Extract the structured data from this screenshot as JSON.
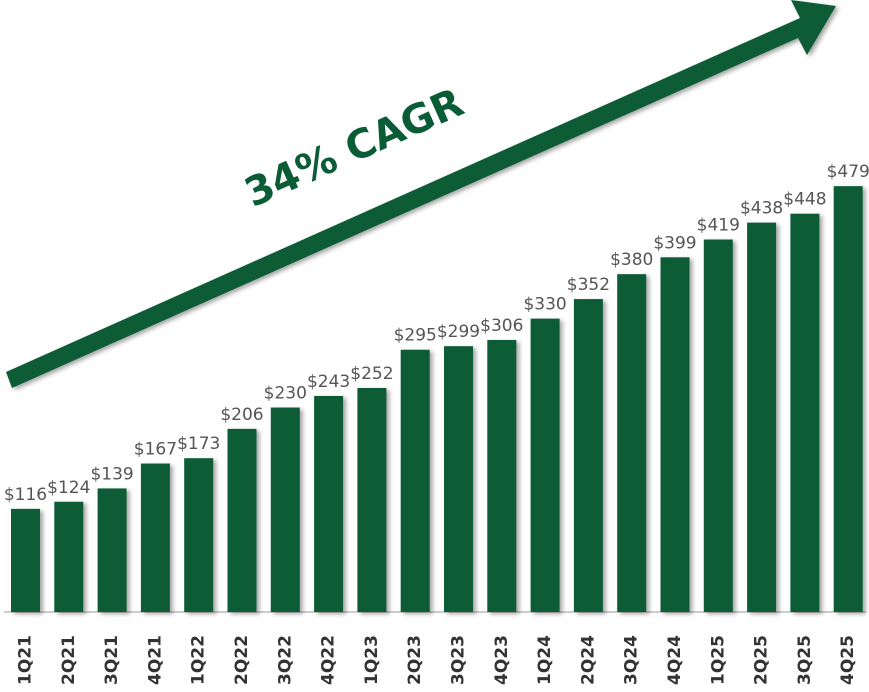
{
  "chart_data": {
    "type": "bar",
    "annotation": "34% CAGR",
    "categories": [
      "1Q21",
      "2Q21",
      "3Q21",
      "4Q21",
      "1Q22",
      "2Q22",
      "3Q22",
      "4Q22",
      "1Q23",
      "2Q23",
      "3Q23",
      "4Q23",
      "1Q24",
      "2Q24",
      "3Q24",
      "4Q24",
      "1Q25",
      "2Q25",
      "3Q25",
      "4Q25"
    ],
    "values": [
      116,
      124,
      139,
      167,
      173,
      206,
      230,
      243,
      252,
      295,
      299,
      306,
      330,
      352,
      380,
      399,
      419,
      438,
      448,
      479
    ],
    "value_labels": [
      "$116",
      "$124",
      "$139",
      "$167",
      "$173",
      "$206",
      "$230",
      "$243",
      "$252",
      "$295",
      "$299",
      "$306",
      "$330",
      "$352",
      "$380",
      "$399",
      "$419",
      "$438",
      "$448",
      "$479"
    ],
    "color": "#0a5c36"
  }
}
